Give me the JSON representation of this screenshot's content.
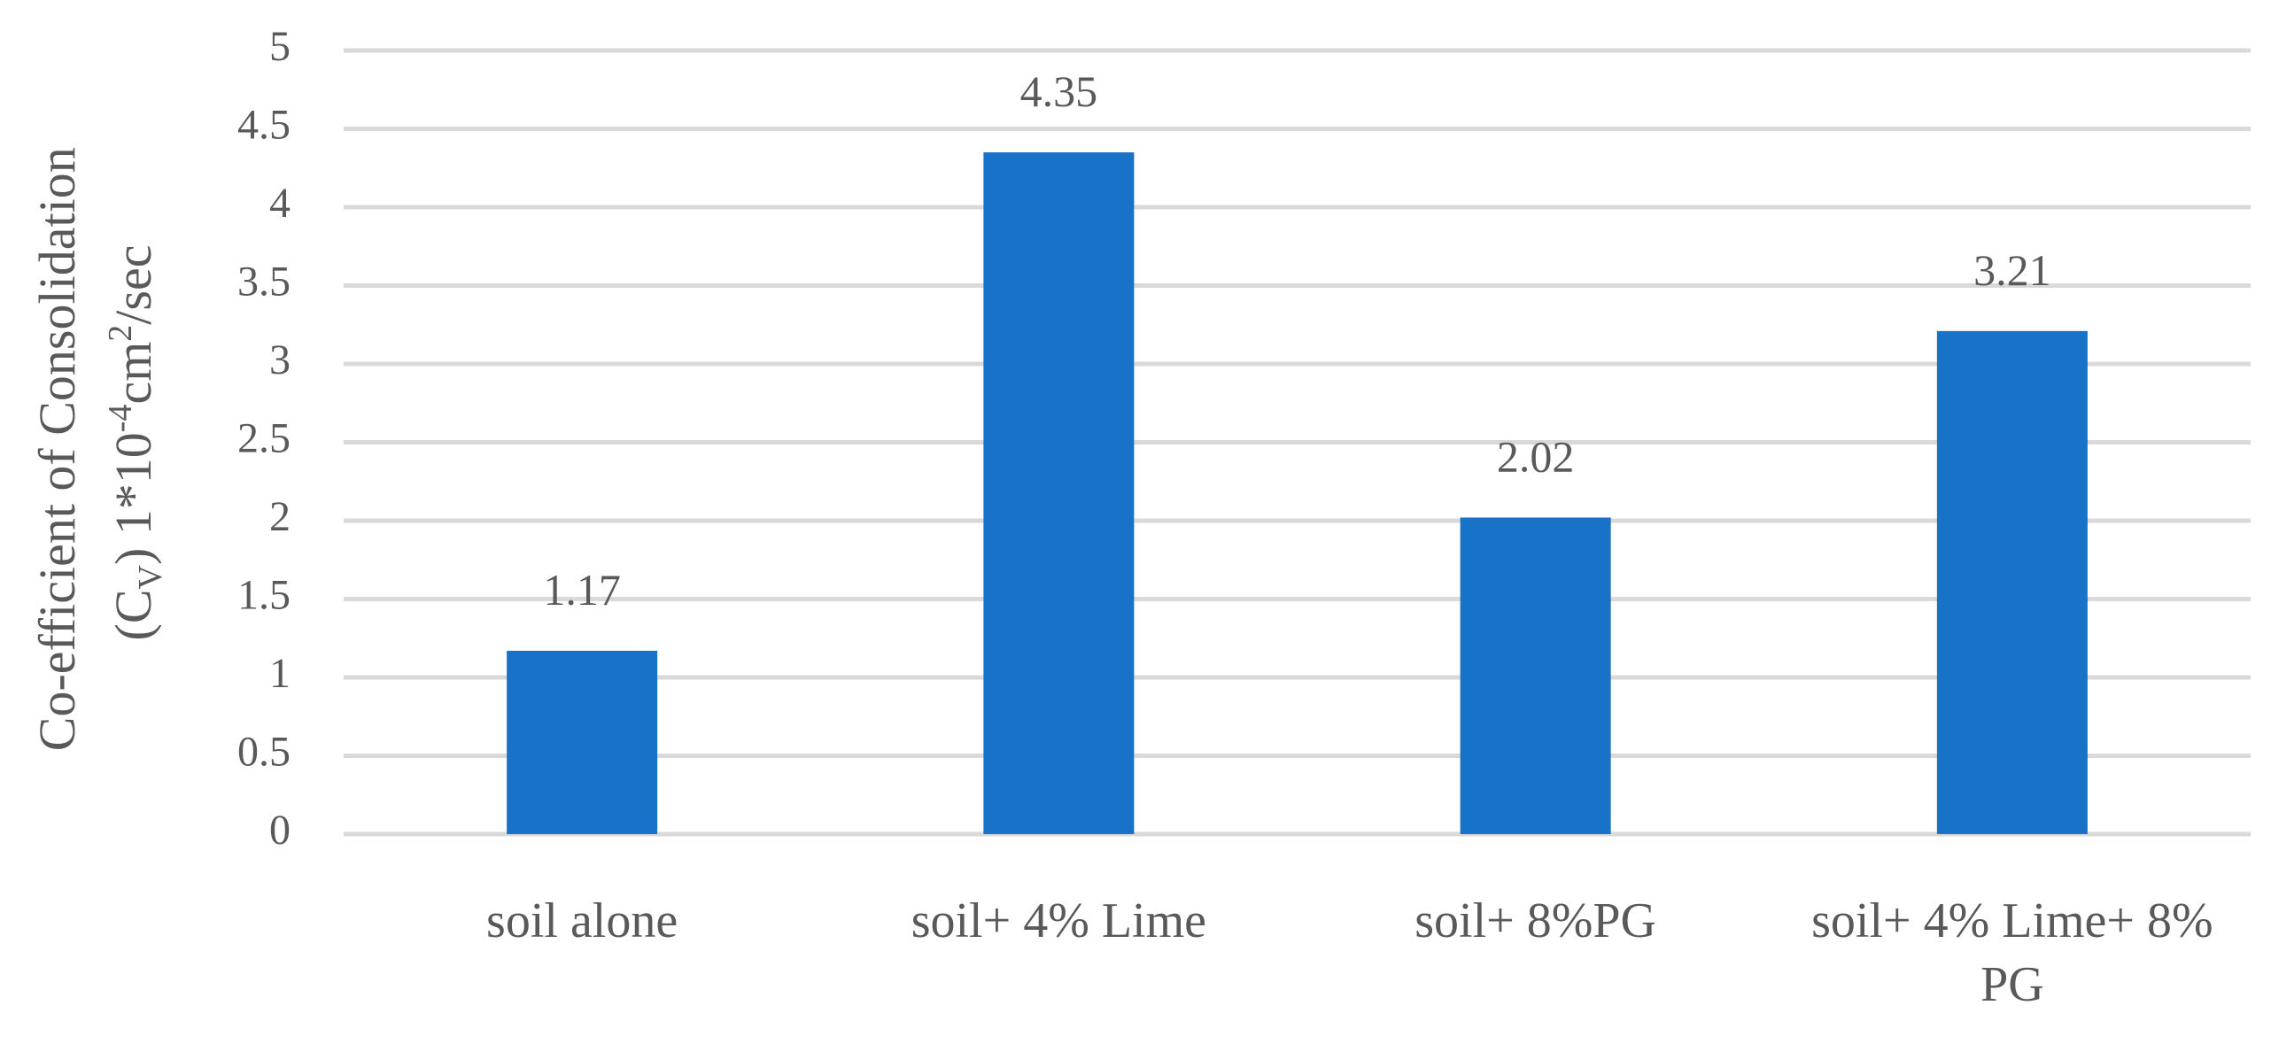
{
  "chart_data": {
    "type": "bar",
    "y_label": {
      "line1": "Co-efficient of Consolidation",
      "line2": [
        "(C",
        "V",
        ") 1*10",
        "-4",
        "cm",
        "2",
        "/sec"
      ]
    },
    "categories": [
      "soil alone",
      "soil+ 4% Lime",
      "soil+ 8%PG",
      "soil+ 4% Lime+ 8% PG"
    ],
    "values": [
      1.17,
      4.35,
      2.02,
      3.21
    ],
    "color": "#1872c8",
    "ylim": [
      0,
      5
    ],
    "yticks": [
      0,
      0.5,
      1,
      1.5,
      2,
      2.5,
      3,
      3.5,
      4,
      4.5,
      5
    ],
    "grid": true,
    "data_labels": true
  }
}
